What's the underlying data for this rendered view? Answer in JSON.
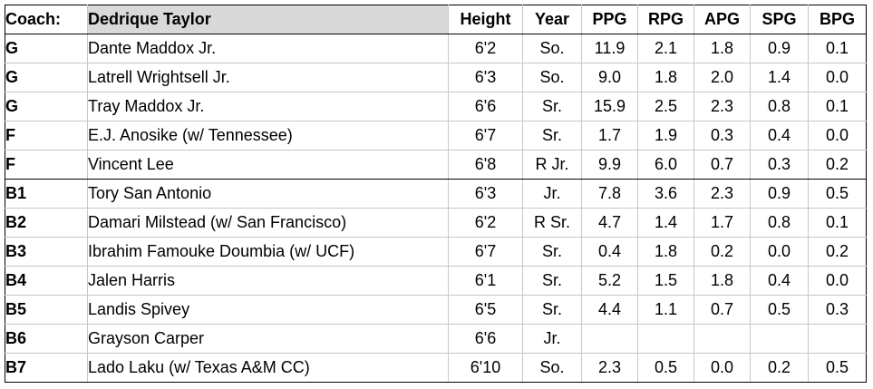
{
  "header": {
    "coach_label": "Coach:",
    "coach_name": "Dedrique Taylor",
    "columns": [
      "Height",
      "Year",
      "PPG",
      "RPG",
      "APG",
      "SPG",
      "BPG"
    ]
  },
  "rows": [
    {
      "pos": "G",
      "name": "Dante Maddox Jr.",
      "height": "6'2",
      "year": "So.",
      "ppg": "11.9",
      "rpg": "2.1",
      "apg": "1.8",
      "spg": "0.9",
      "bpg": "0.1"
    },
    {
      "pos": "G",
      "name": "Latrell Wrightsell Jr.",
      "height": "6'3",
      "year": "So.",
      "ppg": "9.0",
      "rpg": "1.8",
      "apg": "2.0",
      "spg": "1.4",
      "bpg": "0.0"
    },
    {
      "pos": "G",
      "name": "Tray Maddox Jr.",
      "height": "6'6",
      "year": "Sr.",
      "ppg": "15.9",
      "rpg": "2.5",
      "apg": "2.3",
      "spg": "0.8",
      "bpg": "0.1"
    },
    {
      "pos": "F",
      "name": "E.J. Anosike (w/ Tennessee)",
      "height": "6'7",
      "year": "Sr.",
      "ppg": "1.7",
      "rpg": "1.9",
      "apg": "0.3",
      "spg": "0.4",
      "bpg": "0.0"
    },
    {
      "pos": "F",
      "name": "Vincent Lee",
      "height": "6'8",
      "year": "R Jr.",
      "ppg": "9.9",
      "rpg": "6.0",
      "apg": "0.7",
      "spg": "0.3",
      "bpg": "0.2"
    },
    {
      "pos": "B1",
      "name": "Tory San Antonio",
      "height": "6'3",
      "year": "Jr.",
      "ppg": "7.8",
      "rpg": "3.6",
      "apg": "2.3",
      "spg": "0.9",
      "bpg": "0.5"
    },
    {
      "pos": "B2",
      "name": "Damari Milstead (w/ San Francisco)",
      "height": "6'2",
      "year": "R Sr.",
      "ppg": "4.7",
      "rpg": "1.4",
      "apg": "1.7",
      "spg": "0.8",
      "bpg": "0.1"
    },
    {
      "pos": "B3",
      "name": "Ibrahim Famouke Doumbia (w/ UCF)",
      "height": "6'7",
      "year": "Sr.",
      "ppg": "0.4",
      "rpg": "1.8",
      "apg": "0.2",
      "spg": "0.0",
      "bpg": "0.2"
    },
    {
      "pos": "B4",
      "name": "Jalen Harris",
      "height": "6'1",
      "year": "Sr.",
      "ppg": "5.2",
      "rpg": "1.5",
      "apg": "1.8",
      "spg": "0.4",
      "bpg": "0.0"
    },
    {
      "pos": "B5",
      "name": "Landis Spivey",
      "height": "6'5",
      "year": "Sr.",
      "ppg": "4.4",
      "rpg": "1.1",
      "apg": "0.7",
      "spg": "0.5",
      "bpg": "0.3"
    },
    {
      "pos": "B6",
      "name": "Grayson Carper",
      "height": "6'6",
      "year": "Jr.",
      "ppg": "",
      "rpg": "",
      "apg": "",
      "spg": "",
      "bpg": ""
    },
    {
      "pos": "B7",
      "name": "Lado Laku (w/ Texas A&M CC)",
      "height": "6'10",
      "year": "So.",
      "ppg": "2.3",
      "rpg": "0.5",
      "apg": "0.0",
      "spg": "0.2",
      "bpg": "0.5"
    }
  ]
}
